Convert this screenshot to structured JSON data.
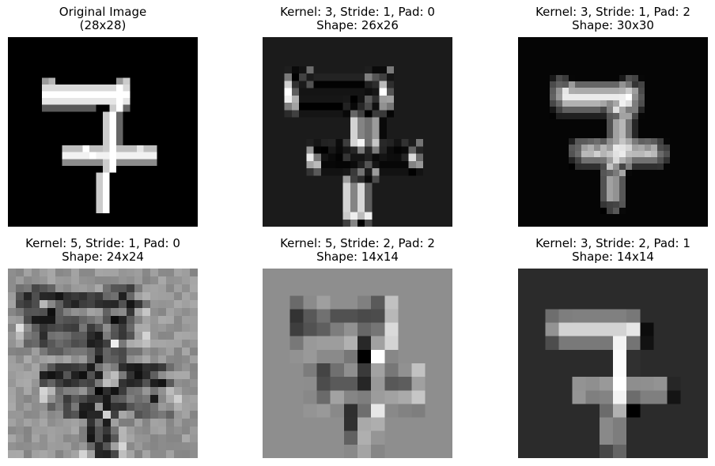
{
  "chart_data": [
    {
      "type": "heatmap",
      "title_line1": "Original Image",
      "title_line2": "(28x28)",
      "grid": 28,
      "colormap": "gray",
      "render": "original"
    },
    {
      "type": "heatmap",
      "title_line1": "Kernel: 3, Stride: 1, Pad: 0",
      "title_line2": "Shape: 26x26",
      "grid": 26,
      "colormap": "gray",
      "render": "edge",
      "kernel": 3,
      "stride": 1,
      "pad": 0
    },
    {
      "type": "heatmap",
      "title_line1": "Kernel: 3, Stride: 1, Pad: 2",
      "title_line2": "Shape: 30x30",
      "grid": 30,
      "colormap": "gray",
      "render": "edge-pad",
      "kernel": 3,
      "stride": 1,
      "pad": 2
    },
    {
      "type": "heatmap",
      "title_line1": "Kernel: 5, Stride: 1, Pad: 0",
      "title_line2": "Shape: 24x24",
      "grid": 24,
      "colormap": "gray",
      "render": "noisy",
      "kernel": 5,
      "stride": 1,
      "pad": 0
    },
    {
      "type": "heatmap",
      "title_line1": "Kernel: 5, Stride: 2, Pad: 2",
      "title_line2": "Shape: 14x14",
      "grid": 14,
      "colormap": "gray",
      "render": "light-pad",
      "kernel": 5,
      "stride": 2,
      "pad": 2
    },
    {
      "type": "heatmap",
      "title_line1": "Kernel: 3, Stride: 2, Pad: 1",
      "title_line2": "Shape: 14x14",
      "grid": 14,
      "colormap": "gray",
      "render": "mid-pad",
      "kernel": 3,
      "stride": 2,
      "pad": 1
    }
  ]
}
